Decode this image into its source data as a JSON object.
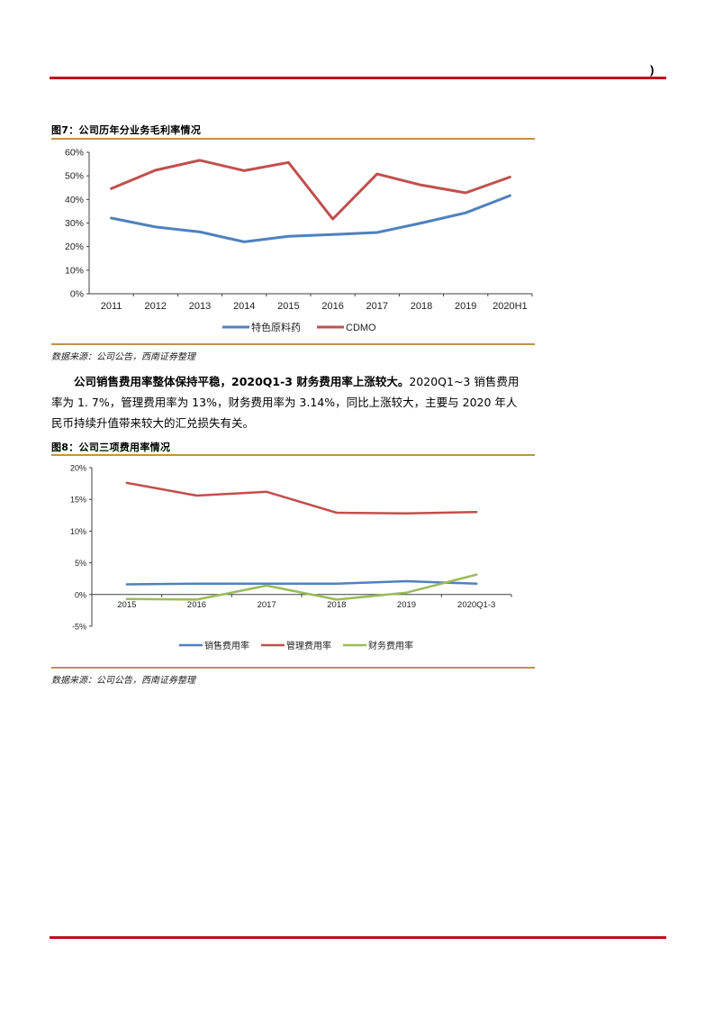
{
  "header": {
    "mark": ")"
  },
  "figure7": {
    "title": "图7：公司历年分业务毛利率情况",
    "source": "数据来源：公司公告，西南证券整理",
    "legend": [
      "特色原料药",
      "CDMO"
    ]
  },
  "paragraph": {
    "bold_lead": "公司销售费用率整体保持平稳，2020Q1-3 财务费用率上涨较大。",
    "line1_rest": "2020Q1~3 销售费用",
    "line2": "率为 1. 7%，管理费用率为 13%，财务费用率为 3.14%，同比上涨较大，主要与 2020 年人",
    "line3": "民币持续升值带来较大的汇兑损失有关。"
  },
  "figure8": {
    "title": "图8：公司三项费用率情况",
    "source": "数据来源：公司公告，西南证券整理",
    "legend": [
      "销售费用率",
      "管理费用率",
      "财务费用率"
    ]
  },
  "colors": {
    "blue": "#4f81bd",
    "red": "#c0504d",
    "green": "#9bbb59",
    "rule_red": "#c00d1e",
    "rule_gold": "#c0924a"
  },
  "chart_data": [
    {
      "type": "line",
      "title": "图7：公司历年分业务毛利率情况",
      "xlabel": "",
      "ylabel": "",
      "categories": [
        "2011",
        "2012",
        "2013",
        "2014",
        "2015",
        "2016",
        "2017",
        "2018",
        "2019",
        "2020H1"
      ],
      "series": [
        {
          "name": "特色原料药",
          "color": "#4f81bd",
          "values": [
            32.1,
            28.3,
            26.2,
            22.0,
            24.4,
            25.1,
            26.0,
            30.0,
            34.3,
            41.6
          ]
        },
        {
          "name": "CDMO",
          "color": "#c0504d",
          "values": [
            44.6,
            52.4,
            56.6,
            52.2,
            55.7,
            31.7,
            50.8,
            46.1,
            42.8,
            49.5
          ]
        }
      ],
      "yticks": [
        "0%",
        "10%",
        "20%",
        "30%",
        "40%",
        "50%",
        "60%"
      ],
      "ylim": [
        0,
        60
      ],
      "grid": false,
      "legend_position": "bottom"
    },
    {
      "type": "line",
      "title": "图8：公司三项费用率情况",
      "xlabel": "",
      "ylabel": "",
      "categories": [
        "2015",
        "2016",
        "2017",
        "2018",
        "2019",
        "2020Q1-3"
      ],
      "series": [
        {
          "name": "销售费用率",
          "color": "#4f81bd",
          "values": [
            1.6,
            1.7,
            1.7,
            1.7,
            2.1,
            1.7
          ]
        },
        {
          "name": "管理费用率",
          "color": "#c0504d",
          "values": [
            17.6,
            15.6,
            16.2,
            12.9,
            12.8,
            13.0
          ]
        },
        {
          "name": "财务费用率",
          "color": "#9bbb59",
          "values": [
            -0.7,
            -0.8,
            1.4,
            -0.8,
            0.3,
            3.14
          ]
        }
      ],
      "yticks": [
        "-5%",
        "0%",
        "5%",
        "10%",
        "15%",
        "20%"
      ],
      "ylim": [
        -5,
        20
      ],
      "grid": false,
      "legend_position": "bottom"
    }
  ]
}
